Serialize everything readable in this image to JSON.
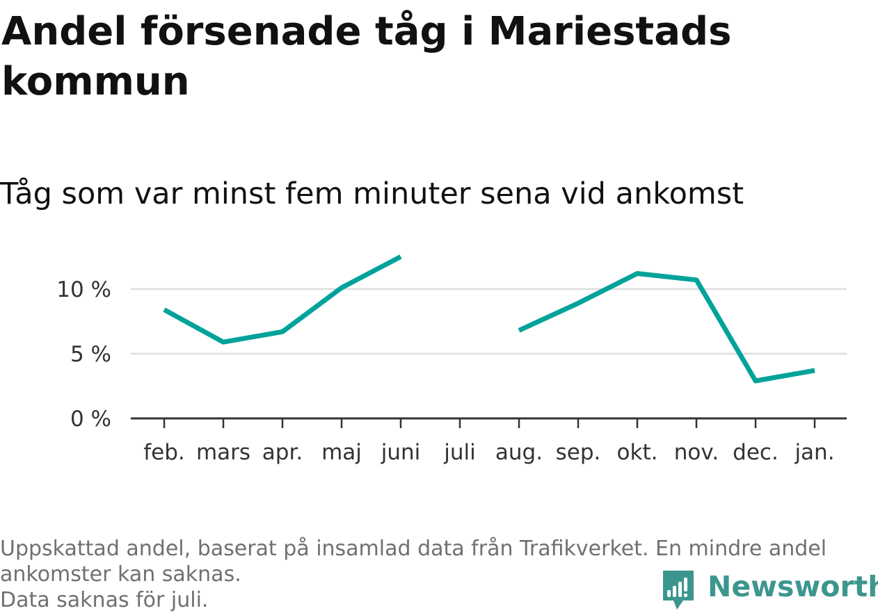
{
  "title": "Andel försenade tåg i Mariestads kommun",
  "subtitle": "Tåg som var minst fem minuter sena vid ankomst",
  "footnote": {
    "line1": "Uppskattad andel, baserat på insamlad data från Trafikverket. En mindre andel ankomster kan saknas.",
    "line2": "Data saknas för juli."
  },
  "brand": {
    "name": "Newsworthy",
    "icon": "newsworthy-logo-icon",
    "color": "#3c968e"
  },
  "chart_data": {
    "type": "line",
    "title": "Andel försenade tåg i Mariestads kommun",
    "subtitle": "Tåg som var minst fem minuter sena vid ankomst",
    "categories": [
      "feb.",
      "mars",
      "apr.",
      "maj",
      "juni",
      "juli",
      "aug.",
      "sep.",
      "okt.",
      "nov.",
      "dec.",
      "jan."
    ],
    "series": [
      {
        "color": "#00a39a",
        "values": [
          8.4,
          5.9,
          6.7,
          10.1,
          12.5,
          null,
          6.8,
          8.9,
          11.2,
          10.7,
          2.9,
          3.7
        ]
      }
    ],
    "ylim": [
      0,
      13
    ],
    "yticks": [
      {
        "value": 0,
        "label": "0 %"
      },
      {
        "value": 5,
        "label": "5 %"
      },
      {
        "value": 10,
        "label": "10 %"
      }
    ],
    "grid": true,
    "legend": "none",
    "colors": {
      "grid": "#dddddd",
      "axis": "#333333",
      "tick_label": "#333333"
    }
  }
}
